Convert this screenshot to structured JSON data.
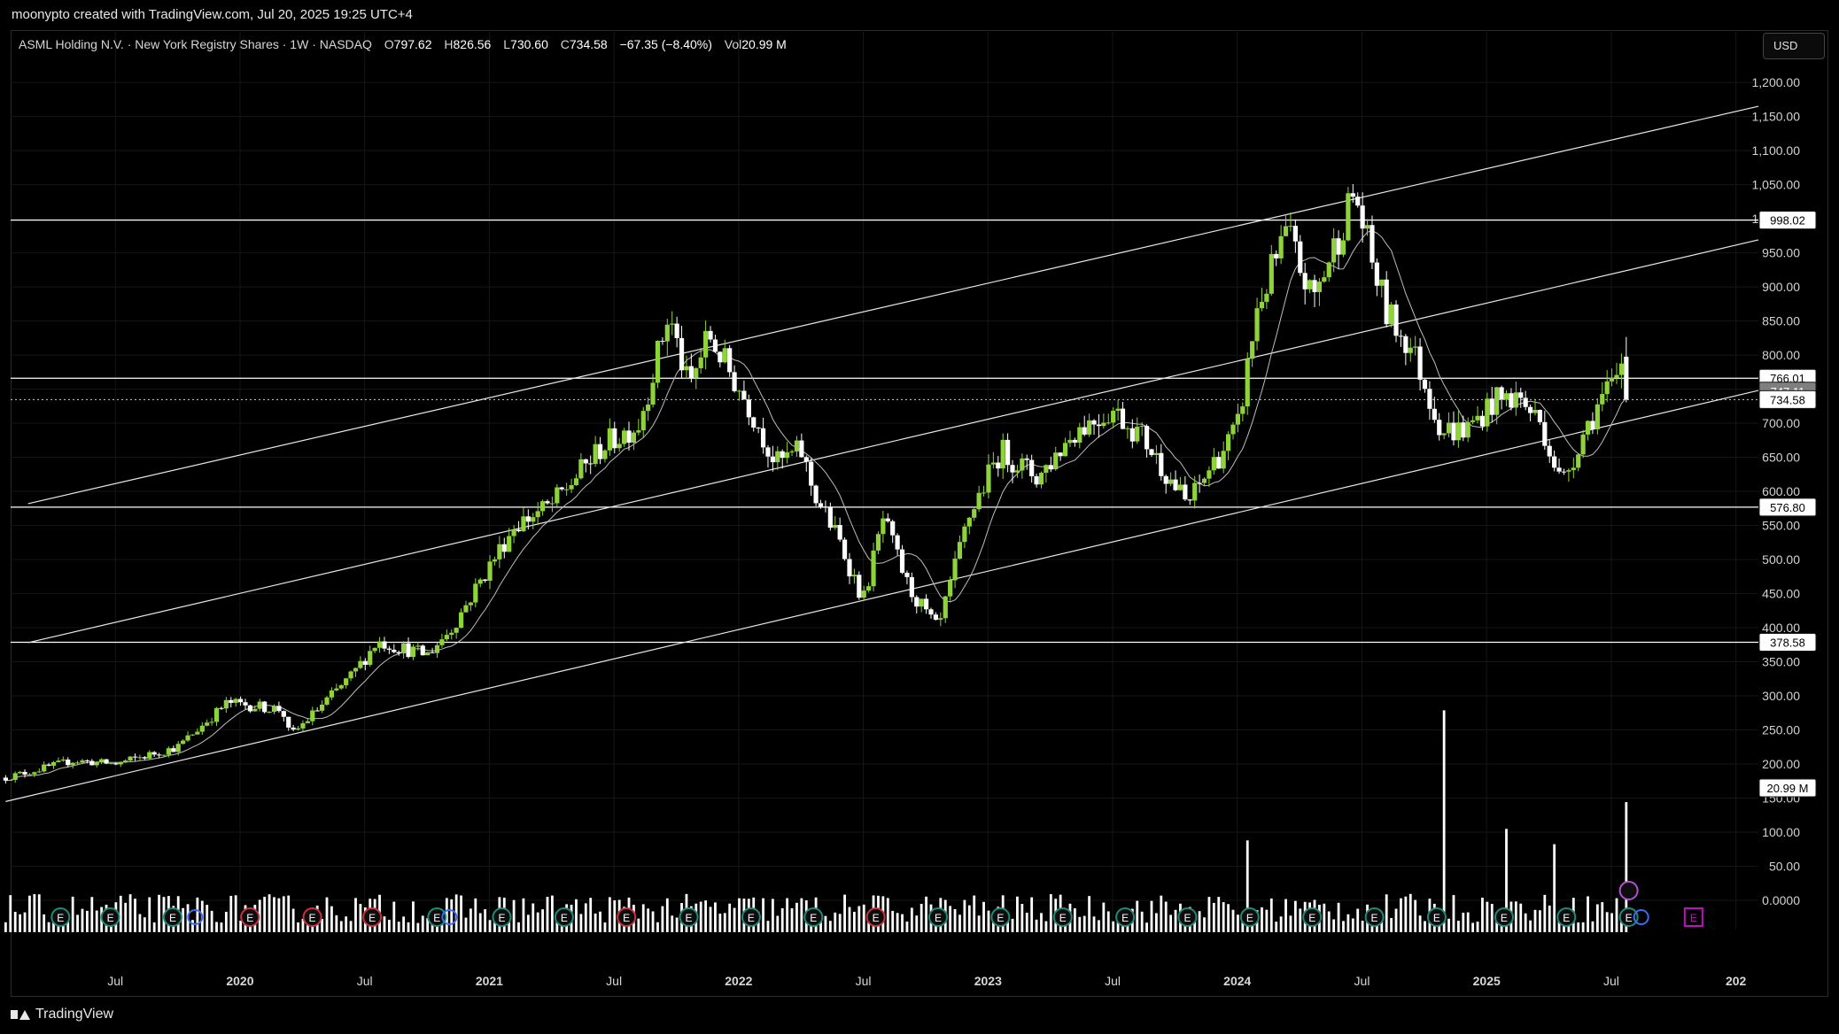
{
  "credit": "moonypto created with TradingView.com, Jul 20, 2025 19:25 UTC+4",
  "legend": {
    "symbol": "ASML Holding N.V. · New York Registry Shares · 1W · NASDAQ",
    "open_label": "O",
    "open": "797.62",
    "high_label": "H",
    "high": "826.56",
    "low_label": "L",
    "low": "730.60",
    "close_label": "C",
    "close": "734.58",
    "change": "−67.35 (−8.40%)",
    "vol_label": "Vol",
    "vol": "20.99 M"
  },
  "currency_button": "USD",
  "brand": "TradingView",
  "colors": {
    "background": "#000000",
    "bull": "#8fd33a",
    "bear": "#ffffff",
    "line": "#ffffff",
    "earnings_teal": "#1f8a7a",
    "earnings_red": "#c8323c",
    "dividend_blue": "#3b6cf0",
    "future_event_magenta": "#c010c0"
  },
  "chart_data": {
    "type": "candlestick",
    "interval": "1W",
    "price_axis_ticks": [
      "1,200.00",
      "1,150.00",
      "1,100.00",
      "1,050.00",
      "1,000.00",
      "950.00",
      "900.00",
      "850.00",
      "800.00",
      "750.00",
      "700.00",
      "650.00",
      "600.00",
      "550.00",
      "500.00",
      "450.00",
      "400.00",
      "350.00",
      "300.00",
      "250.00",
      "200.00",
      "150.00",
      "100.00",
      "50.00",
      "0.0000"
    ],
    "price_labels": [
      {
        "value": "998.02",
        "style": "level"
      },
      {
        "value": "766.01",
        "style": "level"
      },
      {
        "value": "747.11",
        "style": "grey"
      },
      {
        "value": "734.58",
        "style": "last"
      },
      {
        "value": "576.80",
        "style": "level"
      },
      {
        "value": "378.58",
        "style": "level"
      },
      {
        "value": "20.99 M",
        "style": "volume"
      }
    ],
    "time_axis_ticks": [
      {
        "label": "Jul",
        "t": 2019.5,
        "bold": false
      },
      {
        "label": "2020",
        "t": 2020.0,
        "bold": true
      },
      {
        "label": "Jul",
        "t": 2020.5,
        "bold": false
      },
      {
        "label": "2021",
        "t": 2021.0,
        "bold": true
      },
      {
        "label": "Jul",
        "t": 2021.5,
        "bold": false
      },
      {
        "label": "2022",
        "t": 2022.0,
        "bold": true
      },
      {
        "label": "Jul",
        "t": 2022.5,
        "bold": false
      },
      {
        "label": "2023",
        "t": 2023.0,
        "bold": true
      },
      {
        "label": "Jul",
        "t": 2023.5,
        "bold": false
      },
      {
        "label": "2024",
        "t": 2024.0,
        "bold": true
      },
      {
        "label": "Jul",
        "t": 2024.5,
        "bold": false
      },
      {
        "label": "2025",
        "t": 2025.0,
        "bold": true
      },
      {
        "label": "Jul",
        "t": 2025.5,
        "bold": false
      },
      {
        "label": "202",
        "t": 2026.0,
        "bold": true
      }
    ],
    "x_range": [
      2019.08,
      2026.09
    ],
    "y_range": [
      0,
      1230
    ],
    "horizontal_levels": [
      998.02,
      766.01,
      576.8,
      378.58
    ],
    "last_price_dotted": 734.58,
    "channel_lines": [
      {
        "t1": 2019.15,
        "p1": 582,
        "t2": 2026.09,
        "p2": 1165
      },
      {
        "t1": 2019.15,
        "p1": 378,
        "t2": 2026.09,
        "p2": 969
      },
      {
        "t1": 2019.06,
        "p1": 145,
        "t2": 2026.09,
        "p2": 748
      }
    ],
    "key_points": [
      {
        "t": 2019.06,
        "p": 180
      },
      {
        "t": 2019.33,
        "p": 205
      },
      {
        "t": 2019.5,
        "p": 200
      },
      {
        "t": 2019.75,
        "p": 225
      },
      {
        "t": 2019.95,
        "p": 290
      },
      {
        "t": 2020.17,
        "p": 280
      },
      {
        "t": 2020.2,
        "p": 240
      },
      {
        "t": 2020.45,
        "p": 330
      },
      {
        "t": 2020.55,
        "p": 380
      },
      {
        "t": 2020.75,
        "p": 360
      },
      {
        "t": 2020.85,
        "p": 400
      },
      {
        "t": 2021.1,
        "p": 550
      },
      {
        "t": 2021.25,
        "p": 580
      },
      {
        "t": 2021.45,
        "p": 665
      },
      {
        "t": 2021.6,
        "p": 700
      },
      {
        "t": 2021.72,
        "p": 860
      },
      {
        "t": 2021.8,
        "p": 750
      },
      {
        "t": 2021.88,
        "p": 830
      },
      {
        "t": 2022.05,
        "p": 720
      },
      {
        "t": 2022.15,
        "p": 640
      },
      {
        "t": 2022.25,
        "p": 660
      },
      {
        "t": 2022.3,
        "p": 600
      },
      {
        "t": 2022.4,
        "p": 530
      },
      {
        "t": 2022.5,
        "p": 440
      },
      {
        "t": 2022.58,
        "p": 560
      },
      {
        "t": 2022.68,
        "p": 460
      },
      {
        "t": 2022.8,
        "p": 395
      },
      {
        "t": 2022.92,
        "p": 560
      },
      {
        "t": 2023.05,
        "p": 660
      },
      {
        "t": 2023.2,
        "p": 620
      },
      {
        "t": 2023.35,
        "p": 690
      },
      {
        "t": 2023.5,
        "p": 720
      },
      {
        "t": 2023.62,
        "p": 680
      },
      {
        "t": 2023.8,
        "p": 580
      },
      {
        "t": 2023.9,
        "p": 640
      },
      {
        "t": 2024.0,
        "p": 690
      },
      {
        "t": 2024.08,
        "p": 870
      },
      {
        "t": 2024.2,
        "p": 980
      },
      {
        "t": 2024.3,
        "p": 880
      },
      {
        "t": 2024.38,
        "p": 950
      },
      {
        "t": 2024.47,
        "p": 1040
      },
      {
        "t": 2024.53,
        "p": 950
      },
      {
        "t": 2024.6,
        "p": 860
      },
      {
        "t": 2024.7,
        "p": 810
      },
      {
        "t": 2024.82,
        "p": 690
      },
      {
        "t": 2024.92,
        "p": 690
      },
      {
        "t": 2025.02,
        "p": 730
      },
      {
        "t": 2025.12,
        "p": 740
      },
      {
        "t": 2025.22,
        "p": 700
      },
      {
        "t": 2025.3,
        "p": 610
      },
      {
        "t": 2025.38,
        "p": 680
      },
      {
        "t": 2025.45,
        "p": 730
      },
      {
        "t": 2025.52,
        "p": 760
      },
      {
        "t": 2025.55,
        "p": 800
      },
      {
        "t": 2025.56,
        "p": 734.58
      }
    ],
    "volume_spikes": [
      {
        "t": 2024.05,
        "v": 120
      },
      {
        "t": 2024.82,
        "v": 290
      },
      {
        "t": 2025.07,
        "v": 135
      },
      {
        "t": 2025.27,
        "v": 115
      },
      {
        "t": 2025.56,
        "v": 170
      }
    ],
    "events": [
      {
        "t": 2019.28,
        "type": "earnings"
      },
      {
        "t": 2019.48,
        "type": "earnings"
      },
      {
        "t": 2019.73,
        "type": "earnings"
      },
      {
        "t": 2019.82,
        "type": "dividend"
      },
      {
        "t": 2020.04,
        "type": "earnings_red"
      },
      {
        "t": 2020.29,
        "type": "earnings_red"
      },
      {
        "t": 2020.53,
        "type": "earnings_red"
      },
      {
        "t": 2020.79,
        "type": "earnings"
      },
      {
        "t": 2020.84,
        "type": "dividend"
      },
      {
        "t": 2021.05,
        "type": "earnings"
      },
      {
        "t": 2021.3,
        "type": "earnings"
      },
      {
        "t": 2021.55,
        "type": "earnings_red"
      },
      {
        "t": 2021.8,
        "type": "earnings"
      },
      {
        "t": 2022.05,
        "type": "earnings"
      },
      {
        "t": 2022.3,
        "type": "earnings"
      },
      {
        "t": 2022.55,
        "type": "earnings_red"
      },
      {
        "t": 2022.8,
        "type": "earnings"
      },
      {
        "t": 2023.05,
        "type": "earnings"
      },
      {
        "t": 2023.3,
        "type": "earnings"
      },
      {
        "t": 2023.55,
        "type": "earnings"
      },
      {
        "t": 2023.8,
        "type": "earnings"
      },
      {
        "t": 2024.05,
        "type": "earnings"
      },
      {
        "t": 2024.3,
        "type": "earnings"
      },
      {
        "t": 2024.55,
        "type": "earnings"
      },
      {
        "t": 2024.8,
        "type": "earnings"
      },
      {
        "t": 2025.07,
        "type": "earnings"
      },
      {
        "t": 2025.32,
        "type": "earnings"
      },
      {
        "t": 2025.57,
        "type": "earnings"
      },
      {
        "t": 2025.62,
        "type": "dividend"
      },
      {
        "t": 2025.83,
        "type": "future_earnings"
      }
    ]
  }
}
